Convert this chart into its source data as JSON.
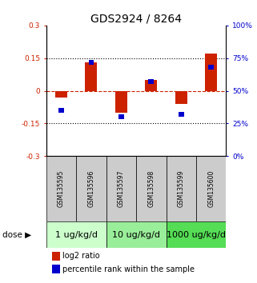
{
  "title": "GDS2924 / 8264",
  "samples": [
    "GSM135595",
    "GSM135596",
    "GSM135597",
    "GSM135598",
    "GSM135599",
    "GSM135600"
  ],
  "log2_ratios": [
    -0.03,
    0.13,
    -0.1,
    0.05,
    -0.06,
    0.17
  ],
  "percentile_ranks": [
    35,
    72,
    30,
    57,
    32,
    68
  ],
  "ylim": [
    -0.3,
    0.3
  ],
  "yticks_left": [
    -0.3,
    -0.15,
    0,
    0.15,
    0.3
  ],
  "yticks_right": [
    0,
    25,
    50,
    75,
    100
  ],
  "dose_groups": [
    {
      "label": "1 ug/kg/d",
      "samples": [
        0,
        1
      ],
      "color": "#ccffcc"
    },
    {
      "label": "10 ug/kg/d",
      "samples": [
        2,
        3
      ],
      "color": "#99ee99"
    },
    {
      "label": "1000 ug/kg/d",
      "samples": [
        4,
        5
      ],
      "color": "#55dd55"
    }
  ],
  "red_color": "#cc2200",
  "blue_color": "#0000cc",
  "bar_width": 0.4,
  "blue_bar_width": 0.18,
  "blue_bar_height": 0.022,
  "sample_box_color": "#cccccc",
  "title_fontsize": 10,
  "tick_fontsize": 6.5,
  "sample_fontsize": 5.5,
  "dose_fontsize": 8,
  "legend_fontsize": 7
}
